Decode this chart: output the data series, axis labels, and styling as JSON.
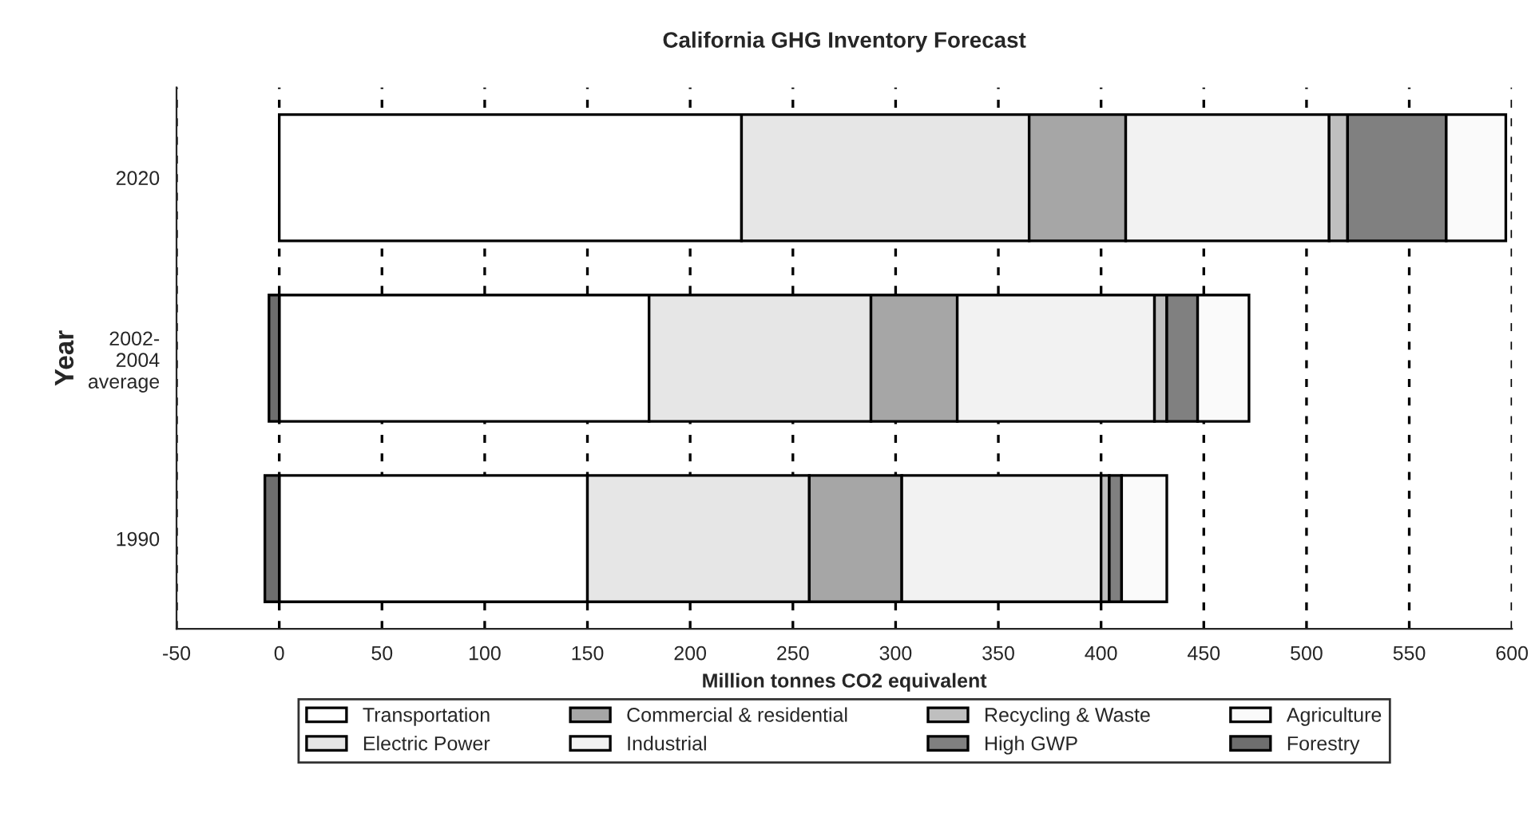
{
  "chart_data": {
    "type": "bar",
    "orientation": "horizontal",
    "stacked": true,
    "title": "California GHG Inventory Forecast",
    "xlabel": "Million tonnes CO2 equivalent",
    "ylabel": "Year",
    "categories": [
      "2020",
      "2002-\n2004\naverage",
      "1990"
    ],
    "series": [
      {
        "name": "Transportation",
        "color": "#ffffff",
        "values": [
          225,
          180,
          150
        ]
      },
      {
        "name": "Electric Power",
        "color": "#e6e6e6",
        "values": [
          140,
          108,
          108
        ]
      },
      {
        "name": "Commercial & residential",
        "color": "#a6a6a6",
        "values": [
          47,
          42,
          45
        ]
      },
      {
        "name": "Industrial",
        "color": "#f2f2f2",
        "values": [
          99,
          96,
          97
        ]
      },
      {
        "name": "Recycling & Waste",
        "color": "#bfbfbf",
        "values": [
          9,
          6,
          4
        ]
      },
      {
        "name": "High GWP",
        "color": "#808080",
        "values": [
          48,
          15,
          6
        ]
      },
      {
        "name": "Agriculture",
        "color": "#fafafa",
        "values": [
          29,
          25,
          22
        ]
      },
      {
        "name": "Forestry",
        "color": "#6e6e6e",
        "values": [
          null,
          -5,
          -7
        ]
      }
    ],
    "xlim": [
      -50,
      600
    ],
    "xticks": [
      -50,
      0,
      50,
      100,
      150,
      200,
      250,
      300,
      350,
      400,
      450,
      500,
      550,
      600
    ],
    "grid": "x",
    "legend": "bottom"
  }
}
